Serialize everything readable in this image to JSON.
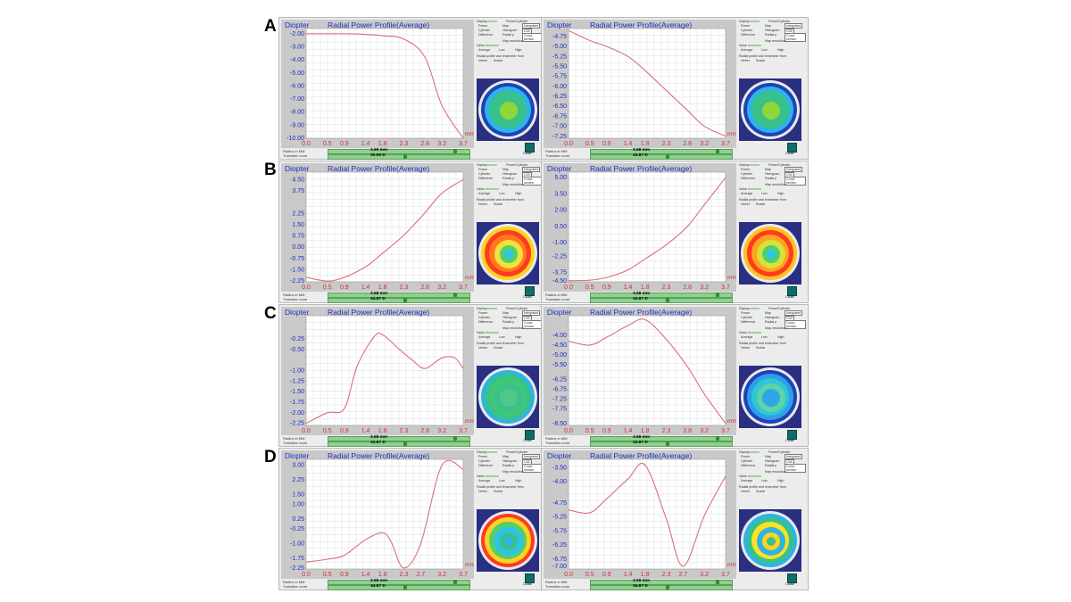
{
  "rows": [
    "A",
    "B",
    "C",
    "D"
  ],
  "panel_common": {
    "ylabel": "Diopter",
    "title": "Radial Power Profile(Average)",
    "xunit": "mm",
    "footer_radius_label": "Radius in MM",
    "footer_zone_label": "Transition zone",
    "ctl_display": "Display",
    "ctl_power": "Power",
    "ctl_cylinder": "Cylinder",
    "ctl_difference": "Difference",
    "ctl_power_cyl": "Power/Cylinder",
    "ctl_map": "Map",
    "ctl_histogram": "Histogram",
    "ctl_radial": "Radial p",
    "ctl_integrated": "Integrated",
    "ctl_lsa": "LSA",
    "ctl_cross": "Cross section",
    "ctl_map_res": "Map resolution",
    "ctl_value_of": "Value of",
    "ctl_average": "Average",
    "ctl_low": "Low",
    "ctl_high": "High",
    "ctl_radial_from": "Radial profile and lensmeter from",
    "ctl_vertex": "Vertex",
    "ctl_scalar": "Scalar",
    "close": "Close"
  },
  "chart_data": [
    {
      "type": "line",
      "row": "A",
      "x": [
        0.0,
        0.5,
        0.9,
        1.4,
        1.8,
        2.3,
        2.8,
        3.2,
        3.7
      ],
      "y": [
        -2.0,
        -2.0,
        -2.0,
        -2.05,
        -2.15,
        -2.4,
        -3.8,
        -7.5,
        -10.0
      ],
      "yticks": [
        "-2.00",
        "-3.00",
        "-4.00",
        "-5.00",
        "-6.00",
        "-7.00",
        "-8.00",
        "-9.00",
        "-10.00"
      ],
      "xticks": [
        "0.0",
        "0.5",
        "0.9",
        "1.4",
        "1.8",
        "2.3",
        "2.8",
        "3.2",
        "3.7"
      ],
      "ylim": [
        -10.0,
        -1.6
      ],
      "radius": "3.69 mm",
      "zone": "30.99 D",
      "map": "A1"
    },
    {
      "type": "line",
      "row": "A",
      "x": [
        0.0,
        0.5,
        0.9,
        1.4,
        1.8,
        2.3,
        2.8,
        3.2,
        3.7
      ],
      "y": [
        -4.6,
        -4.85,
        -5.0,
        -5.25,
        -5.6,
        -6.1,
        -6.6,
        -7.0,
        -7.25
      ],
      "yticks": [
        "-4.75",
        "-5.00",
        "-5.25",
        "-5.50",
        "-5.75",
        "-6.00",
        "-6.25",
        "-6.50",
        "-6.75",
        "-7.00",
        "-7.25"
      ],
      "xticks": [
        "0.0",
        "0.5",
        "0.9",
        "1.4",
        "1.8",
        "2.3",
        "2.8",
        "3.2",
        "3.7"
      ],
      "ylim": [
        -7.3,
        -4.55
      ],
      "radius": "3.68 mm",
      "zone": "34.87 D",
      "map": "A2"
    },
    {
      "type": "line",
      "row": "B",
      "x": [
        0.0,
        0.5,
        0.9,
        1.4,
        1.8,
        2.3,
        2.8,
        3.2,
        3.7
      ],
      "y": [
        -2.0,
        -2.25,
        -2.0,
        -1.3,
        -0.4,
        0.8,
        2.3,
        3.6,
        4.5
      ],
      "yticks": [
        "4.50",
        "3.75",
        "2.25",
        "1.50",
        "0.75",
        "0.00",
        "-0.75",
        "-1.50",
        "-2.25"
      ],
      "xticks": [
        "0.0",
        "0.5",
        "0.9",
        "1.4",
        "1.8",
        "2.3",
        "2.8",
        "3.2",
        "3.7"
      ],
      "ylim": [
        -2.3,
        5.0
      ],
      "radius": "3.68 mm",
      "zone": "34.87 D",
      "map": "B1"
    },
    {
      "type": "line",
      "row": "B",
      "x": [
        0.0,
        0.5,
        0.9,
        1.4,
        1.8,
        2.3,
        2.8,
        3.2,
        3.7
      ],
      "y": [
        -4.5,
        -4.45,
        -4.2,
        -3.5,
        -2.5,
        -1.2,
        0.5,
        2.5,
        5.0
      ],
      "yticks": [
        "5.00",
        "3.50",
        "2.00",
        "0.50",
        "-1.00",
        "-2.25",
        "-3.75",
        "-4.50"
      ],
      "xticks": [
        "0.0",
        "0.5",
        "0.9",
        "1.4",
        "1.8",
        "2.3",
        "2.8",
        "3.2",
        "3.7"
      ],
      "ylim": [
        -4.6,
        5.5
      ],
      "radius": "3.68 mm",
      "zone": "34.87 D",
      "map": "B2"
    },
    {
      "type": "line",
      "row": "C",
      "x": [
        0.0,
        0.5,
        0.9,
        1.2,
        1.6,
        1.8,
        2.2,
        2.5,
        2.8,
        3.2,
        3.5,
        3.7
      ],
      "y": [
        -2.25,
        -2.0,
        -1.9,
        -0.9,
        -0.2,
        -0.15,
        -0.5,
        -0.75,
        -0.95,
        -0.7,
        -0.7,
        -0.95
      ],
      "yticks": [
        "-0.25",
        "-0.50",
        "-1.00",
        "-1.25",
        "-1.50",
        "-1.75",
        "-2.00",
        "-2.25"
      ],
      "xticks": [
        "0.0",
        "0.5",
        "0.9",
        "1.4",
        "1.8",
        "2.3",
        "2.8",
        "3.2",
        "3.7"
      ],
      "ylim": [
        -2.3,
        0.3
      ],
      "radius": "3.68 mm",
      "zone": "34.87 D",
      "map": "C1"
    },
    {
      "type": "line",
      "row": "C",
      "x": [
        0.0,
        0.5,
        0.9,
        1.4,
        1.8,
        2.3,
        2.8,
        3.2,
        3.7
      ],
      "y": [
        -4.3,
        -4.5,
        -4.1,
        -3.5,
        -3.2,
        -4.2,
        -5.6,
        -7.0,
        -8.5
      ],
      "yticks": [
        "-4.00",
        "-4.50",
        "-5.00",
        "-5.50",
        "-6.25",
        "-6.75",
        "-7.25",
        "-7.75",
        "-8.50"
      ],
      "xticks": [
        "0.0",
        "0.5",
        "0.9",
        "1.4",
        "1.8",
        "2.3",
        "2.8",
        "3.2",
        "3.7"
      ],
      "ylim": [
        -8.6,
        -3.0
      ],
      "radius": "3.68 mm",
      "zone": "34.87 D",
      "map": "C2"
    },
    {
      "type": "line",
      "row": "D",
      "x": [
        0.0,
        0.5,
        0.9,
        1.4,
        1.8,
        2.0,
        2.3,
        2.7,
        3.2,
        3.7
      ],
      "y": [
        -1.95,
        -1.8,
        -1.6,
        -0.8,
        -0.45,
        -0.9,
        -2.25,
        -1.0,
        3.0,
        2.8
      ],
      "yticks": [
        "3.00",
        "2.25",
        "1.50",
        "1.00",
        "0.25",
        "-0.25",
        "-1.00",
        "-1.75",
        "-2.25"
      ],
      "xticks": [
        "0.0",
        "0.5",
        "0.9",
        "1.4",
        "1.8",
        "2.3",
        "2.7",
        "3.2",
        "3.7"
      ],
      "ylim": [
        -2.3,
        3.3
      ],
      "radius": "3.68 mm",
      "zone": "34.87 D",
      "map": "D1"
    },
    {
      "type": "line",
      "row": "D",
      "x": [
        0.0,
        0.5,
        0.9,
        1.4,
        1.8,
        2.3,
        2.7,
        3.2,
        3.7
      ],
      "y": [
        -5.0,
        -5.1,
        -4.6,
        -3.9,
        -3.4,
        -5.3,
        -7.0,
        -5.2,
        -3.8
      ],
      "yticks": [
        "-3.50",
        "-4.00",
        "-4.75",
        "-5.25",
        "-5.75",
        "-6.25",
        "-6.75",
        "-7.00"
      ],
      "xticks": [
        "0.0",
        "0.5",
        "0.9",
        "1.4",
        "1.8",
        "2.3",
        "2.7",
        "3.2",
        "3.7"
      ],
      "ylim": [
        -7.1,
        -3.2
      ],
      "radius": "3.68 mm",
      "zone": "34.87 D",
      "map": "D2"
    }
  ]
}
